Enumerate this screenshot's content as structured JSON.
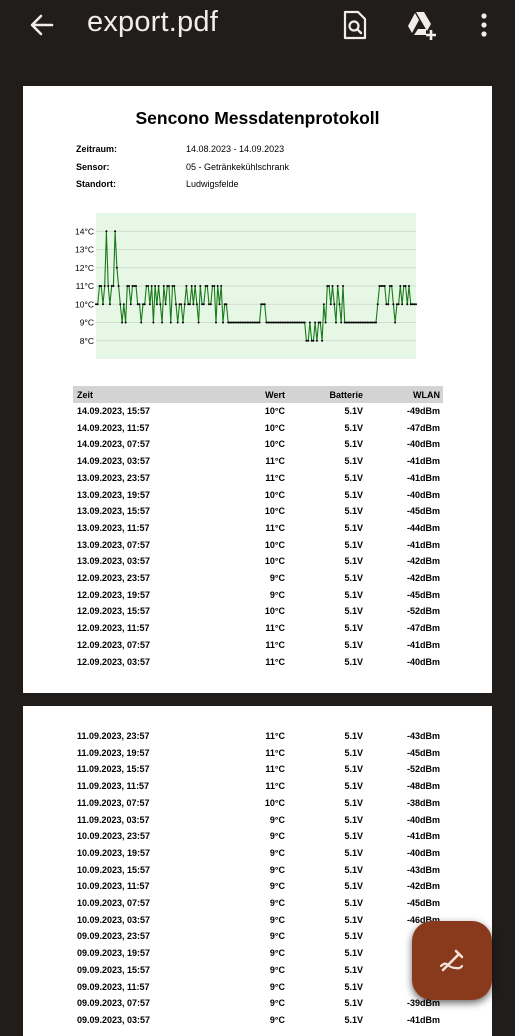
{
  "toolbar": {
    "title": "export.pdf"
  },
  "document": {
    "title": "Sencono Messdatenprotokoll",
    "meta": [
      {
        "key": "Zeitraum:",
        "value": "14.08.2023 - 14.09.2023"
      },
      {
        "key": "Sensor:",
        "value": "05 - Getränkekühlschrank"
      },
      {
        "key": "Standort:",
        "value": "Ludwigsfelde"
      }
    ],
    "table_header": {
      "time": "Zeit",
      "wert": "Wert",
      "bat": "Batterie",
      "wlan": "WLAN"
    },
    "rows_page1": [
      [
        "14.09.2023, 15:57",
        "10°C",
        "5.1V",
        "-49dBm"
      ],
      [
        "14.09.2023, 11:57",
        "10°C",
        "5.1V",
        "-47dBm"
      ],
      [
        "14.09.2023, 07:57",
        "10°C",
        "5.1V",
        "-40dBm"
      ],
      [
        "14.09.2023, 03:57",
        "11°C",
        "5.1V",
        "-41dBm"
      ],
      [
        "13.09.2023, 23:57",
        "11°C",
        "5.1V",
        "-41dBm"
      ],
      [
        "13.09.2023, 19:57",
        "10°C",
        "5.1V",
        "-40dBm"
      ],
      [
        "13.09.2023, 15:57",
        "10°C",
        "5.1V",
        "-45dBm"
      ],
      [
        "13.09.2023, 11:57",
        "11°C",
        "5.1V",
        "-44dBm"
      ],
      [
        "13.09.2023, 07:57",
        "10°C",
        "5.1V",
        "-41dBm"
      ],
      [
        "13.09.2023, 03:57",
        "10°C",
        "5.1V",
        "-42dBm"
      ],
      [
        "12.09.2023, 23:57",
        "9°C",
        "5.1V",
        "-42dBm"
      ],
      [
        "12.09.2023, 19:57",
        "9°C",
        "5.1V",
        "-45dBm"
      ],
      [
        "12.09.2023, 15:57",
        "10°C",
        "5.1V",
        "-52dBm"
      ],
      [
        "12.09.2023, 11:57",
        "11°C",
        "5.1V",
        "-47dBm"
      ],
      [
        "12.09.2023, 07:57",
        "11°C",
        "5.1V",
        "-41dBm"
      ],
      [
        "12.09.2023, 03:57",
        "11°C",
        "5.1V",
        "-40dBm"
      ]
    ],
    "rows_page2": [
      [
        "11.09.2023, 23:57",
        "11°C",
        "5.1V",
        "-43dBm"
      ],
      [
        "11.09.2023, 19:57",
        "11°C",
        "5.1V",
        "-45dBm"
      ],
      [
        "11.09.2023, 15:57",
        "11°C",
        "5.1V",
        "-52dBm"
      ],
      [
        "11.09.2023, 11:57",
        "11°C",
        "5.1V",
        "-48dBm"
      ],
      [
        "11.09.2023, 07:57",
        "10°C",
        "5.1V",
        "-38dBm"
      ],
      [
        "11.09.2023, 03:57",
        "9°C",
        "5.1V",
        "-40dBm"
      ],
      [
        "10.09.2023, 23:57",
        "9°C",
        "5.1V",
        "-41dBm"
      ],
      [
        "10.09.2023, 19:57",
        "9°C",
        "5.1V",
        "-40dBm"
      ],
      [
        "10.09.2023, 15:57",
        "9°C",
        "5.1V",
        "-43dBm"
      ],
      [
        "10.09.2023, 11:57",
        "9°C",
        "5.1V",
        "-42dBm"
      ],
      [
        "10.09.2023, 07:57",
        "9°C",
        "5.1V",
        "-45dBm"
      ],
      [
        "10.09.2023, 03:57",
        "9°C",
        "5.1V",
        "-46dBm"
      ],
      [
        "09.09.2023, 23:57",
        "9°C",
        "5.1V",
        "-3"
      ],
      [
        "09.09.2023, 19:57",
        "9°C",
        "5.1V",
        "-"
      ],
      [
        "09.09.2023, 15:57",
        "9°C",
        "5.1V",
        "-"
      ],
      [
        "09.09.2023, 11:57",
        "9°C",
        "5.1V",
        "-"
      ],
      [
        "09.09.2023, 07:57",
        "9°C",
        "5.1V",
        "-39dBm"
      ],
      [
        "09.09.2023, 03:57",
        "9°C",
        "5.1V",
        "-41dBm"
      ]
    ]
  },
  "chart_data": {
    "type": "line",
    "yticks": [
      "14°C",
      "13°C",
      "12°C",
      "11°C",
      "10°C",
      "9°C",
      "8°C"
    ],
    "ylim": [
      7,
      15
    ],
    "grid": true,
    "color": "#1a7a1a",
    "background": "#e6f7e6",
    "values": [
      10,
      10,
      11,
      11,
      10,
      11,
      14,
      11,
      10,
      11,
      11,
      14,
      12,
      11,
      10,
      9,
      10,
      9,
      11,
      11,
      10,
      11,
      11,
      11,
      10,
      10,
      9,
      10,
      10,
      11,
      11,
      10,
      11,
      9,
      11,
      10,
      11,
      10,
      9,
      11,
      10,
      11,
      11,
      9,
      11,
      11,
      10,
      9,
      10,
      10,
      9,
      10,
      11,
      10,
      10,
      11,
      10,
      11,
      10,
      9,
      11,
      10,
      10,
      11,
      11,
      10,
      10,
      11,
      11,
      9,
      11,
      10,
      11,
      9,
      10,
      10,
      9,
      9,
      9,
      9,
      9,
      9,
      9,
      9,
      9,
      9,
      9,
      9,
      9,
      9,
      9,
      9,
      9,
      9,
      9,
      10,
      10,
      10,
      9,
      9,
      9,
      9,
      9,
      9,
      9,
      9,
      9,
      9,
      9,
      9,
      9,
      9,
      9,
      9,
      9,
      9,
      9,
      9,
      9,
      9,
      9,
      8,
      8,
      9,
      8,
      8,
      9,
      8,
      9,
      9,
      8,
      10,
      9,
      11,
      11,
      10,
      11,
      10,
      9,
      11,
      10,
      9,
      11,
      9,
      9,
      9,
      9,
      9,
      9,
      9,
      9,
      9,
      9,
      9,
      9,
      9,
      9,
      9,
      9,
      9,
      9,
      9,
      10,
      11,
      11,
      11,
      11,
      10,
      10,
      11,
      11,
      10,
      9,
      10,
      10,
      11,
      10,
      11,
      11,
      10,
      11,
      10,
      10,
      10,
      10
    ]
  }
}
